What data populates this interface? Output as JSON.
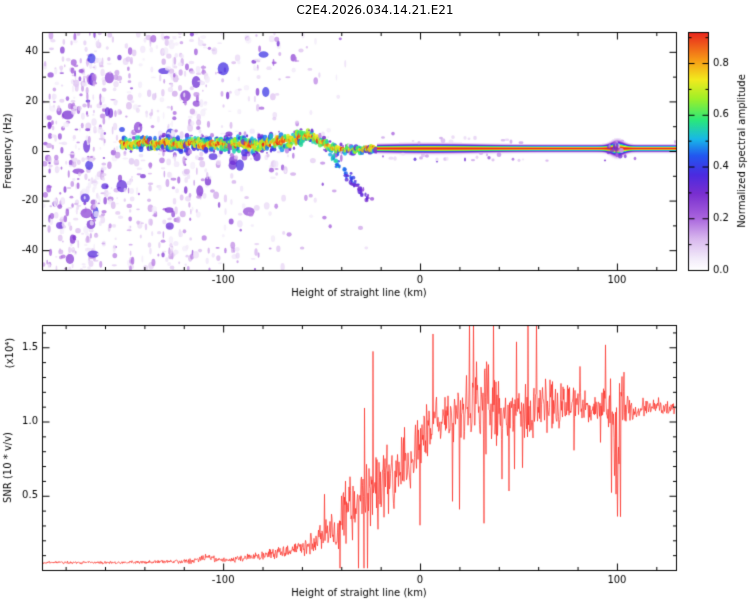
{
  "title": "C2E4.2026.034.14.21.E21",
  "background": "#ffffff",
  "chart_data": [
    {
      "type": "heatmap",
      "title": "C2E4.2026.034.14.21.E21",
      "xlabel": "Height of straight line (km)",
      "ylabel": "Frequency (Hz)",
      "xlim": [
        -192,
        130
      ],
      "ylim": [
        -48,
        48
      ],
      "xticks": [
        {
          "v": -100,
          "label": "-100"
        },
        {
          "v": 0,
          "label": "0"
        },
        {
          "v": 100,
          "label": "100"
        }
      ],
      "yticks": [
        {
          "v": -40,
          "label": "-40"
        },
        {
          "v": -20,
          "label": "-20"
        },
        {
          "v": 0,
          "label": "0"
        },
        {
          "v": 20,
          "label": "20"
        },
        {
          "v": 40,
          "label": "40"
        }
      ],
      "colorbar": {
        "label": "Normalized spectral amplitude",
        "ticks": [
          {
            "v": 0.0,
            "label": "0.0"
          },
          {
            "v": 0.2,
            "label": "0.2"
          },
          {
            "v": 0.4,
            "label": "0.4"
          },
          {
            "v": 0.6,
            "label": "0.6"
          },
          {
            "v": 0.8,
            "label": "0.8"
          }
        ],
        "vmax_display": 0.92
      },
      "colormap_stops": [
        [
          0.0,
          "#ffffff"
        ],
        [
          0.05,
          "#f2eafa"
        ],
        [
          0.13,
          "#d9b8ee"
        ],
        [
          0.22,
          "#a863dd"
        ],
        [
          0.32,
          "#7a2fd0"
        ],
        [
          0.4,
          "#4b2be0"
        ],
        [
          0.48,
          "#2257f0"
        ],
        [
          0.55,
          "#18b8e8"
        ],
        [
          0.63,
          "#2ae87a"
        ],
        [
          0.72,
          "#9ff028"
        ],
        [
          0.8,
          "#f2ea1e"
        ],
        [
          0.88,
          "#f79c16"
        ],
        [
          1.0,
          "#e8231e"
        ]
      ],
      "signal_ridge": [
        [
          -152,
          3.5
        ],
        [
          -146,
          2.5
        ],
        [
          -140,
          4.0
        ],
        [
          -134,
          2.5
        ],
        [
          -128,
          3.5
        ],
        [
          -122,
          2.0
        ],
        [
          -116,
          3.5
        ],
        [
          -110,
          2.5
        ],
        [
          -104,
          3.2
        ],
        [
          -98,
          2.2
        ],
        [
          -92,
          3.0
        ],
        [
          -86,
          2.2
        ],
        [
          -80,
          2.8
        ],
        [
          -74,
          3.4
        ],
        [
          -68,
          4.2
        ],
        [
          -62,
          5.0
        ],
        [
          -57,
          6.5
        ],
        [
          -53,
          5.0
        ],
        [
          -49,
          3.0
        ],
        [
          -45,
          1.5
        ],
        [
          -40,
          0.8
        ],
        [
          -34,
          0.4
        ],
        [
          -28,
          0.8
        ],
        [
          -22,
          1.0
        ],
        [
          130,
          1.0
        ]
      ],
      "noise_density": [
        [
          -148,
          26
        ],
        [
          -104,
          20
        ],
        [
          -88,
          11
        ],
        [
          -70,
          6
        ],
        [
          -52,
          3
        ],
        [
          -38,
          1.4
        ],
        [
          -24,
          0.5
        ],
        [
          200,
          0
        ]
      ],
      "descending_tail": {
        "from_km": -46,
        "from_hz": -1.5,
        "to_km": -25,
        "to_hz": -20.5
      },
      "bulge_km": 100,
      "seed": 7
    },
    {
      "type": "line",
      "xlabel": "Height of straight line (km)",
      "ylabel": "SNR (10 * v/v)",
      "ylabel_scale": "(x10⁴)",
      "xlim": [
        -192,
        130
      ],
      "ylim": [
        0,
        1.65
      ],
      "xticks": [
        {
          "v": -100,
          "label": "-100"
        },
        {
          "v": 0,
          "label": "0"
        },
        {
          "v": 100,
          "label": "100"
        }
      ],
      "yticks": [
        {
          "v": 0.5,
          "label": "0.5"
        },
        {
          "v": 1.0,
          "label": "1.0"
        },
        {
          "v": 1.5,
          "label": "1.5"
        }
      ],
      "series": [
        {
          "name": "SNR",
          "color": "#fb2c24",
          "envelope": [
            [
              -192,
              0.05,
              0.012
            ],
            [
              -160,
              0.05,
              0.012
            ],
            [
              -130,
              0.055,
              0.015
            ],
            [
              -115,
              0.06,
              0.02
            ],
            [
              -108,
              0.09,
              0.03
            ],
            [
              -103,
              0.07,
              0.02
            ],
            [
              -95,
              0.07,
              0.02
            ],
            [
              -85,
              0.09,
              0.03
            ],
            [
              -75,
              0.11,
              0.04
            ],
            [
              -65,
              0.13,
              0.05
            ],
            [
              -58,
              0.16,
              0.07
            ],
            [
              -52,
              0.2,
              0.1
            ],
            [
              -46,
              0.25,
              0.14
            ],
            [
              -42,
              0.3,
              0.2
            ],
            [
              -38,
              0.42,
              0.28
            ],
            [
              -34,
              0.38,
              0.25
            ],
            [
              -30,
              0.5,
              0.3
            ],
            [
              -26,
              0.55,
              0.32
            ],
            [
              -22,
              0.5,
              0.3
            ],
            [
              -18,
              0.62,
              0.3
            ],
            [
              -14,
              0.6,
              0.28
            ],
            [
              -10,
              0.7,
              0.3
            ],
            [
              -6,
              0.72,
              0.28
            ],
            [
              -2,
              0.8,
              0.28
            ],
            [
              2,
              0.9,
              0.25
            ],
            [
              6,
              0.95,
              0.22
            ],
            [
              10,
              1.0,
              0.2
            ],
            [
              15,
              1.02,
              0.22
            ],
            [
              20,
              1.05,
              0.25
            ],
            [
              25,
              1.08,
              0.3
            ],
            [
              30,
              1.1,
              0.38
            ],
            [
              35,
              1.12,
              0.38
            ],
            [
              40,
              1.1,
              0.3
            ],
            [
              45,
              1.08,
              0.22
            ],
            [
              50,
              1.1,
              0.2
            ],
            [
              55,
              1.08,
              0.22
            ],
            [
              60,
              1.1,
              0.25
            ],
            [
              65,
              1.12,
              0.22
            ],
            [
              70,
              1.1,
              0.2
            ],
            [
              75,
              1.12,
              0.18
            ],
            [
              80,
              1.1,
              0.15
            ],
            [
              85,
              1.08,
              0.12
            ],
            [
              90,
              1.1,
              0.12
            ],
            [
              95,
              1.1,
              0.15
            ],
            [
              98,
              1.05,
              0.3
            ],
            [
              100,
              0.6,
              0.55
            ],
            [
              102,
              1.15,
              0.4
            ],
            [
              105,
              1.1,
              0.15
            ],
            [
              110,
              1.08,
              0.08
            ],
            [
              115,
              1.1,
              0.07
            ],
            [
              120,
              1.1,
              0.07
            ],
            [
              125,
              1.08,
              0.06
            ],
            [
              130,
              1.1,
              0.06
            ]
          ]
        }
      ],
      "seed": 11
    }
  ]
}
